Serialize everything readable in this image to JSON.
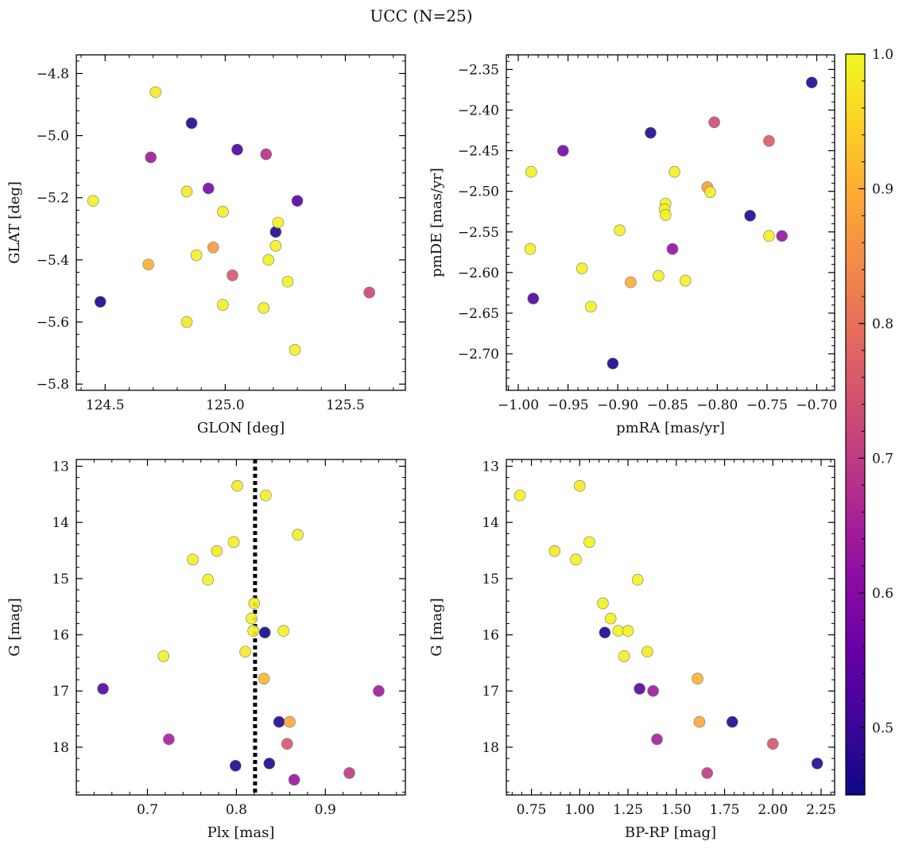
{
  "figure": {
    "title": "UCC (N=25)"
  },
  "colorbar": {
    "cmap": "plasma",
    "range": [
      0.45,
      1.0
    ],
    "ticks": [
      0.5,
      0.6,
      0.7,
      0.8,
      0.9,
      1.0
    ],
    "tick_labels": [
      "0.5",
      "0.6",
      "0.7",
      "0.8",
      "0.9",
      "1.0"
    ]
  },
  "chart_data": [
    {
      "type": "scatter",
      "panel": "top-left",
      "xlabel": "GLON [deg]",
      "ylabel": "GLAT [deg]",
      "xlim": [
        124.38,
        125.75
      ],
      "ylim": [
        -5.82,
        -4.74
      ],
      "xticks": [
        124.5,
        125.0,
        125.5
      ],
      "xtick_labels": [
        "124.5",
        "125.0",
        "125.5"
      ],
      "yticks": [
        -5.8,
        -5.6,
        -5.4,
        -5.2,
        -5.0,
        -4.8
      ],
      "ytick_labels": [
        "−5.8",
        "−5.6",
        "−5.4",
        "−5.2",
        "−5.0",
        "−4.8"
      ],
      "grid": false,
      "points": [
        {
          "x": 124.71,
          "y": -4.86,
          "c": 0.98
        },
        {
          "x": 124.86,
          "y": -4.96,
          "c": 0.47
        },
        {
          "x": 125.05,
          "y": -5.045,
          "c": 0.52
        },
        {
          "x": 125.17,
          "y": -5.06,
          "c": 0.68
        },
        {
          "x": 124.69,
          "y": -5.07,
          "c": 0.64
        },
        {
          "x": 124.45,
          "y": -5.21,
          "c": 0.99
        },
        {
          "x": 124.84,
          "y": -5.18,
          "c": 0.98
        },
        {
          "x": 124.93,
          "y": -5.17,
          "c": 0.58
        },
        {
          "x": 125.3,
          "y": -5.21,
          "c": 0.53
        },
        {
          "x": 124.99,
          "y": -5.245,
          "c": 0.99
        },
        {
          "x": 125.22,
          "y": -5.28,
          "c": 0.99
        },
        {
          "x": 125.21,
          "y": -5.31,
          "c": 0.47
        },
        {
          "x": 125.21,
          "y": -5.355,
          "c": 0.99
        },
        {
          "x": 124.95,
          "y": -5.36,
          "c": 0.87
        },
        {
          "x": 124.88,
          "y": -5.385,
          "c": 0.99
        },
        {
          "x": 124.68,
          "y": -5.415,
          "c": 0.9
        },
        {
          "x": 125.18,
          "y": -5.4,
          "c": 0.99
        },
        {
          "x": 125.03,
          "y": -5.45,
          "c": 0.75
        },
        {
          "x": 125.26,
          "y": -5.47,
          "c": 0.99
        },
        {
          "x": 124.48,
          "y": -5.535,
          "c": 0.46
        },
        {
          "x": 124.99,
          "y": -5.545,
          "c": 0.99
        },
        {
          "x": 125.16,
          "y": -5.555,
          "c": 0.99
        },
        {
          "x": 125.6,
          "y": -5.505,
          "c": 0.72
        },
        {
          "x": 124.84,
          "y": -5.6,
          "c": 0.98
        },
        {
          "x": 125.29,
          "y": -5.69,
          "c": 0.99
        }
      ]
    },
    {
      "type": "scatter",
      "panel": "top-right",
      "xlabel": "pmRA [mas/yr]",
      "ylabel": "pmDE [mas/yr]",
      "xlim": [
        -1.012,
        -0.682
      ],
      "ylim": [
        -2.745,
        -2.332
      ],
      "xticks": [
        -1.0,
        -0.95,
        -0.9,
        -0.85,
        -0.8,
        -0.75,
        -0.7
      ],
      "xtick_labels": [
        "−1.00",
        "−0.95",
        "−0.90",
        "−0.85",
        "−0.80",
        "−0.75",
        "−0.70"
      ],
      "yticks": [
        -2.7,
        -2.65,
        -2.6,
        -2.55,
        -2.5,
        -2.45,
        -2.4,
        -2.35
      ],
      "ytick_labels": [
        "−2.70",
        "−2.65",
        "−2.60",
        "−2.55",
        "−2.50",
        "−2.45",
        "−2.40",
        "−2.35"
      ],
      "grid": false,
      "points": [
        {
          "x": -0.705,
          "y": -2.366,
          "c": 0.47
        },
        {
          "x": -0.867,
          "y": -2.428,
          "c": 0.47
        },
        {
          "x": -0.803,
          "y": -2.415,
          "c": 0.73
        },
        {
          "x": -0.748,
          "y": -2.438,
          "c": 0.76
        },
        {
          "x": -0.955,
          "y": -2.45,
          "c": 0.58
        },
        {
          "x": -0.987,
          "y": -2.476,
          "c": 0.99
        },
        {
          "x": -0.843,
          "y": -2.476,
          "c": 0.99
        },
        {
          "x": -0.81,
          "y": -2.495,
          "c": 0.88
        },
        {
          "x": -0.807,
          "y": -2.501,
          "c": 0.99
        },
        {
          "x": -0.852,
          "y": -2.515,
          "c": 0.99
        },
        {
          "x": -0.853,
          "y": -2.522,
          "c": 0.99
        },
        {
          "x": -0.852,
          "y": -2.529,
          "c": 0.99
        },
        {
          "x": -0.767,
          "y": -2.53,
          "c": 0.47
        },
        {
          "x": -0.898,
          "y": -2.548,
          "c": 0.99
        },
        {
          "x": -0.748,
          "y": -2.555,
          "c": 0.99
        },
        {
          "x": -0.735,
          "y": -2.555,
          "c": 0.63
        },
        {
          "x": -0.845,
          "y": -2.571,
          "c": 0.62
        },
        {
          "x": -0.988,
          "y": -2.571,
          "c": 0.99
        },
        {
          "x": -0.936,
          "y": -2.595,
          "c": 0.99
        },
        {
          "x": -0.859,
          "y": -2.604,
          "c": 0.99
        },
        {
          "x": -0.832,
          "y": -2.61,
          "c": 0.99
        },
        {
          "x": -0.887,
          "y": -2.612,
          "c": 0.9
        },
        {
          "x": -0.985,
          "y": -2.632,
          "c": 0.52
        },
        {
          "x": -0.927,
          "y": -2.642,
          "c": 0.99
        },
        {
          "x": -0.905,
          "y": -2.712,
          "c": 0.46
        }
      ]
    },
    {
      "type": "scatter",
      "panel": "bottom-left",
      "xlabel": "Plx [mas]",
      "ylabel": "G [mag]",
      "xlim": [
        0.62,
        0.99
      ],
      "ylim": [
        18.85,
        12.88
      ],
      "y_inverted": true,
      "xticks": [
        0.7,
        0.8,
        0.9
      ],
      "xtick_labels": [
        "0.7",
        "0.8",
        "0.9"
      ],
      "yticks": [
        13,
        14,
        15,
        16,
        17,
        18
      ],
      "ytick_labels": [
        "13",
        "14",
        "15",
        "16",
        "17",
        "18"
      ],
      "grid": false,
      "vline": {
        "x": 0.821,
        "style": "dotted",
        "color": "#000000"
      },
      "points": [
        {
          "x": 0.801,
          "y": 13.35,
          "c": 0.98
        },
        {
          "x": 0.833,
          "y": 13.52,
          "c": 0.99
        },
        {
          "x": 0.869,
          "y": 14.22,
          "c": 0.99
        },
        {
          "x": 0.797,
          "y": 14.35,
          "c": 0.99
        },
        {
          "x": 0.778,
          "y": 14.51,
          "c": 0.98
        },
        {
          "x": 0.751,
          "y": 14.66,
          "c": 0.99
        },
        {
          "x": 0.768,
          "y": 15.02,
          "c": 0.99
        },
        {
          "x": 0.82,
          "y": 15.44,
          "c": 0.99
        },
        {
          "x": 0.817,
          "y": 15.71,
          "c": 0.99
        },
        {
          "x": 0.819,
          "y": 15.93,
          "c": 0.99
        },
        {
          "x": 0.853,
          "y": 15.93,
          "c": 0.99
        },
        {
          "x": 0.832,
          "y": 15.96,
          "c": 0.46
        },
        {
          "x": 0.81,
          "y": 16.3,
          "c": 0.98
        },
        {
          "x": 0.718,
          "y": 16.38,
          "c": 0.99
        },
        {
          "x": 0.831,
          "y": 16.78,
          "c": 0.91
        },
        {
          "x": 0.65,
          "y": 16.96,
          "c": 0.53
        },
        {
          "x": 0.96,
          "y": 17.0,
          "c": 0.64
        },
        {
          "x": 0.848,
          "y": 17.55,
          "c": 0.47
        },
        {
          "x": 0.86,
          "y": 17.55,
          "c": 0.89
        },
        {
          "x": 0.724,
          "y": 17.86,
          "c": 0.65
        },
        {
          "x": 0.857,
          "y": 17.94,
          "c": 0.75
        },
        {
          "x": 0.837,
          "y": 18.29,
          "c": 0.47
        },
        {
          "x": 0.799,
          "y": 18.33,
          "c": 0.47
        },
        {
          "x": 0.927,
          "y": 18.46,
          "c": 0.7
        },
        {
          "x": 0.865,
          "y": 18.58,
          "c": 0.63
        }
      ]
    },
    {
      "type": "scatter",
      "panel": "bottom-right",
      "xlabel": "BP-RP [mag]",
      "ylabel": "G [mag]",
      "xlim": [
        0.62,
        2.32
      ],
      "ylim": [
        18.85,
        12.88
      ],
      "y_inverted": true,
      "xticks": [
        0.75,
        1.0,
        1.25,
        1.5,
        1.75,
        2.0,
        2.25
      ],
      "xtick_labels": [
        "0.75",
        "1.00",
        "1.25",
        "1.50",
        "1.75",
        "2.00",
        "2.25"
      ],
      "yticks": [
        13,
        14,
        15,
        16,
        17,
        18
      ],
      "ytick_labels": [
        "13",
        "14",
        "15",
        "16",
        "17",
        "18"
      ],
      "grid": false,
      "points": [
        {
          "x": 0.69,
          "y": 13.52,
          "c": 0.99
        },
        {
          "x": 1.0,
          "y": 13.35,
          "c": 0.98
        },
        {
          "x": 0.87,
          "y": 14.51,
          "c": 0.98
        },
        {
          "x": 1.05,
          "y": 14.35,
          "c": 0.99
        },
        {
          "x": 0.98,
          "y": 14.66,
          "c": 0.99
        },
        {
          "x": 1.3,
          "y": 15.02,
          "c": 0.99
        },
        {
          "x": 1.12,
          "y": 15.44,
          "c": 0.99
        },
        {
          "x": 1.16,
          "y": 15.71,
          "c": 0.99
        },
        {
          "x": 1.2,
          "y": 15.93,
          "c": 0.99
        },
        {
          "x": 1.25,
          "y": 15.93,
          "c": 0.99
        },
        {
          "x": 1.13,
          "y": 15.96,
          "c": 0.46
        },
        {
          "x": 1.35,
          "y": 16.3,
          "c": 0.98
        },
        {
          "x": 1.23,
          "y": 16.38,
          "c": 0.99
        },
        {
          "x": 1.61,
          "y": 16.78,
          "c": 0.91
        },
        {
          "x": 1.31,
          "y": 16.96,
          "c": 0.53
        },
        {
          "x": 1.38,
          "y": 17.0,
          "c": 0.64
        },
        {
          "x": 1.62,
          "y": 17.55,
          "c": 0.89
        },
        {
          "x": 1.79,
          "y": 17.55,
          "c": 0.47
        },
        {
          "x": 1.4,
          "y": 17.86,
          "c": 0.65
        },
        {
          "x": 2.0,
          "y": 17.94,
          "c": 0.75
        },
        {
          "x": 2.23,
          "y": 18.29,
          "c": 0.47
        },
        {
          "x": 1.66,
          "y": 18.46,
          "c": 0.7
        }
      ]
    }
  ]
}
